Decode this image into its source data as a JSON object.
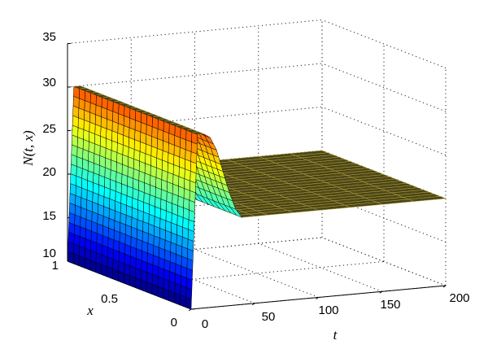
{
  "chart_data": {
    "type": "surface",
    "title": "",
    "xlabel": "t",
    "ylabel": "x",
    "zlabel": "N(t, x)",
    "t_range": [
      0,
      200
    ],
    "x_range": [
      0,
      1
    ],
    "z_range": [
      10,
      35
    ],
    "t_ticks": [
      "0",
      "50",
      "100",
      "150",
      "200"
    ],
    "x_ticks": [
      "0",
      "0.5",
      "1"
    ],
    "z_ticks": [
      "10",
      "15",
      "20",
      "25",
      "30",
      "35"
    ],
    "grid": true,
    "colormap": "jet",
    "surface": {
      "t": [
        0,
        5,
        10,
        15,
        20,
        25,
        30,
        35,
        40,
        50,
        60,
        80,
        100,
        125,
        150,
        175,
        200
      ],
      "N": [
        10,
        30,
        30,
        29.5,
        28,
        25.5,
        23,
        21,
        20,
        20,
        20,
        20,
        20,
        20,
        20,
        20,
        20
      ]
    }
  }
}
